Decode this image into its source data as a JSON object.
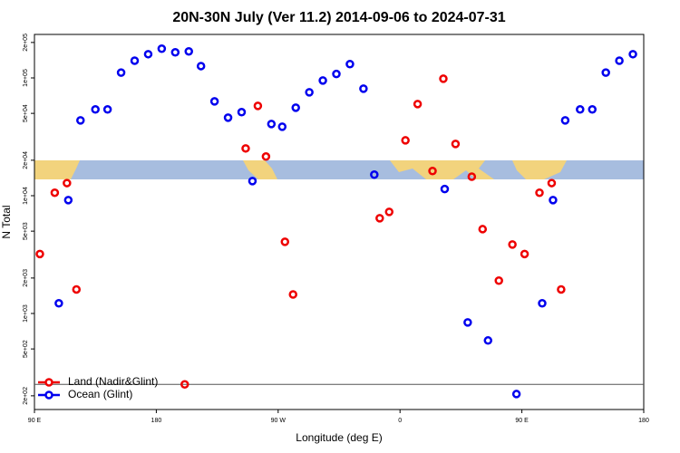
{
  "chart_data": {
    "type": "scatter",
    "title": "20N-30N July (Ver 11.2)   2014-09-06 to 2024-07-31",
    "x_label": "Longitude (deg E)",
    "y_label": "N Total",
    "log_y": true,
    "legend": "lower left",
    "xlim": [
      90,
      540
    ],
    "xticks": [
      {
        "value": 90,
        "label": "90 E"
      },
      {
        "value": 180,
        "label": "180"
      },
      {
        "value": 270,
        "label": "90 W"
      },
      {
        "value": 360,
        "label": "0"
      },
      {
        "value": 450,
        "label": "90 E"
      },
      {
        "value": 540,
        "label": "180"
      }
    ],
    "ylim": [
      153,
      234000
    ],
    "yticks": [
      {
        "value": 200,
        "label": "2e+02"
      },
      {
        "value": 500,
        "label": "5e+02"
      },
      {
        "value": 1000,
        "label": "1e+03"
      },
      {
        "value": 2000,
        "label": "2e+03"
      },
      {
        "value": 5000,
        "label": "5e+03"
      },
      {
        "value": 10000,
        "label": "1e+04"
      },
      {
        "value": 20000,
        "label": "2e+04"
      },
      {
        "value": 50000,
        "label": "5e+04"
      },
      {
        "value": 100000,
        "label": "1e+05"
      },
      {
        "value": 200000,
        "label": "2e+05"
      }
    ],
    "reference_line": 250,
    "series": [
      {
        "name": "Land (Nadir&Glint)",
        "color": "#ee0000",
        "x": [
          94,
          105,
          114,
          121,
          201,
          246,
          255,
          261,
          275,
          281,
          345,
          352,
          364,
          373,
          384,
          392,
          401,
          413,
          421,
          433,
          443,
          452,
          463,
          472,
          479
        ],
        "values": [
          3200,
          10600,
          12800,
          1600,
          250,
          25200,
          57900,
          21500,
          4060,
          1450,
          6440,
          7290,
          29500,
          60000,
          16200,
          98400,
          27500,
          14500,
          5200,
          1900,
          3850,
          3200,
          10600,
          12800,
          1600
        ]
      },
      {
        "name": "Ocean (Glint)",
        "color": "#0000ee",
        "x": [
          108,
          115,
          124,
          135,
          144,
          154,
          164,
          174,
          184,
          194,
          204,
          213,
          223,
          233,
          243,
          251,
          265,
          273,
          283,
          293,
          303,
          313,
          323,
          333,
          341,
          393,
          410,
          425,
          446,
          465,
          473,
          482,
          493,
          502,
          512,
          522,
          532
        ],
        "values": [
          1220,
          9180,
          43600,
          54000,
          54000,
          111000,
          140000,
          159000,
          177000,
          165000,
          168000,
          126000,
          63200,
          46000,
          51200,
          13300,
          40600,
          38500,
          55900,
          75500,
          95100,
          108000,
          131000,
          81000,
          15100,
          11400,
          840,
          590,
          207,
          1220,
          9180,
          43600,
          54000,
          54000,
          111000,
          140000,
          159000
        ]
      }
    ]
  }
}
